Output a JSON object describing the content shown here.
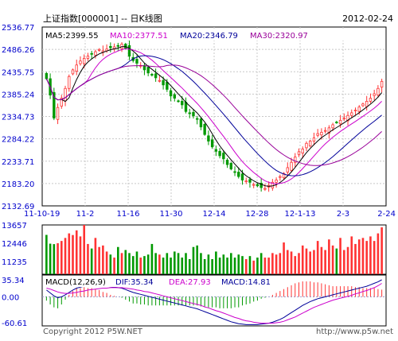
{
  "header": {
    "title": "上证指数[000001] -- 日K线图",
    "date": "2012-02-24"
  },
  "footer": {
    "copyright": "Copyright 2012 P5W.NET",
    "url": "http://www.p5w.net"
  },
  "colors": {
    "up": "#ff3333",
    "down": "#009900",
    "ma5": "#000000",
    "ma10": "#cc00cc",
    "ma20": "#000099",
    "ma30": "#990099",
    "dif": "#000099",
    "dea": "#cc00cc",
    "macd_label": "#000099",
    "axis_text": "#0000cc"
  },
  "chart_data": [
    {
      "type": "candlestick",
      "name": "price",
      "yticks": [
        "2536.77",
        "2486.26",
        "2435.75",
        "2385.24",
        "2334.73",
        "2284.22",
        "2233.71",
        "2183.20",
        "2132.69"
      ],
      "ylim": [
        2132.69,
        2536.77
      ],
      "x_ticks": [
        "11-10-19",
        "11-2",
        "11-16",
        "11-30",
        "12-14",
        "12-28",
        "12-1-13",
        "2-3",
        "2-24"
      ],
      "legend": [
        {
          "label": "MA5:2399.55",
          "series": "ma5"
        },
        {
          "label": "MA10:2377.51",
          "series": "ma10"
        },
        {
          "label": "MA20:2346.79",
          "series": "ma20"
        },
        {
          "label": "MA30:2320.97",
          "series": "ma30"
        }
      ],
      "close": [
        2420,
        2383,
        2331,
        2355,
        2376,
        2398,
        2425,
        2440,
        2451,
        2460,
        2466,
        2471,
        2476,
        2481,
        2486,
        2483,
        2487,
        2490,
        2492,
        2494,
        2498,
        2489,
        2471,
        2461,
        2455,
        2450,
        2440,
        2433,
        2428,
        2422,
        2416,
        2406,
        2396,
        2381,
        2376,
        2369,
        2361,
        2346,
        2341,
        2336,
        2329,
        2311,
        2294,
        2279,
        2266,
        2256,
        2246,
        2239,
        2226,
        2216,
        2209,
        2199,
        2191,
        2189,
        2186,
        2181,
        2178,
        2174,
        2172,
        2179,
        2186,
        2191,
        2199,
        2206,
        2219,
        2231,
        2243,
        2255,
        2261,
        2274,
        2279,
        2286,
        2296,
        2299,
        2303,
        2309,
        2316,
        2321,
        2326,
        2331,
        2337,
        2343,
        2349,
        2356,
        2363,
        2369,
        2376,
        2386,
        2398,
        2414
      ]
    },
    {
      "type": "bar",
      "name": "volume",
      "yticks": [
        "13657",
        "12446",
        "11235"
      ],
      "values": [
        13000,
        12420,
        12390,
        12450,
        12600,
        12800,
        13100,
        12990,
        13300,
        12900,
        13657,
        12400,
        12100,
        12800,
        12200,
        12300,
        11900,
        11700,
        11500,
        12200,
        11800,
        12000,
        11800,
        11600,
        11900,
        11500,
        11600,
        11700,
        12400,
        11800,
        11700,
        11500,
        11800,
        11500,
        11900,
        11800,
        11500,
        11800,
        11400,
        12200,
        12300,
        11800,
        11400,
        11700,
        11400,
        11900,
        11500,
        11700,
        11500,
        11800,
        11500,
        11700,
        11600,
        11400,
        11600,
        11300,
        11500,
        11800,
        11500,
        11500,
        11800,
        11700,
        11800,
        12500,
        12000,
        11900,
        11600,
        11800,
        12300,
        12100,
        11900,
        12000,
        12600,
        12200,
        12000,
        12700,
        12300,
        12100,
        12800,
        12000,
        12200,
        12900,
        12400,
        12700,
        12800,
        12600,
        12900,
        12600,
        13100,
        13500
      ]
    },
    {
      "type": "line",
      "name": "macd",
      "yticks": [
        "35.34",
        "0.00",
        "-60.61"
      ],
      "legend": {
        "title": "MACD(12,26,9)",
        "dif": "DIF:35.34",
        "dea": "DEA:27.93",
        "macd": "MACD:14.81"
      },
      "dif": [
        14.0,
        8.0,
        2.0,
        -2.0,
        0.0,
        4.0,
        9.0,
        14.0,
        18.0,
        20.0,
        22.0,
        23.0,
        24.0,
        24.0,
        24.0,
        23.0,
        22.0,
        21.0,
        20.0,
        19.0,
        18.0,
        15.0,
        12.0,
        9.0,
        7.0,
        5.0,
        3.0,
        1.0,
        -1.0,
        -3.0,
        -5.0,
        -7.0,
        -9.0,
        -11.0,
        -13.0,
        -15.0,
        -17.0,
        -19.0,
        -21.0,
        -23.0,
        -25.0,
        -28.0,
        -31.0,
        -34.0,
        -37.0,
        -40.0,
        -43.0,
        -46.0,
        -49.0,
        -52.0,
        -54.0,
        -56.0,
        -57.0,
        -58.0,
        -58.0,
        -58.0,
        -58.0,
        -57.0,
        -56.0,
        -55.0,
        -53.0,
        -50.0,
        -47.0,
        -43.0,
        -38.0,
        -33.0,
        -28.0,
        -23.0,
        -18.0,
        -14.0,
        -10.0,
        -7.0,
        -4.0,
        -2.0,
        0.0,
        2.0,
        4.0,
        6.0,
        8.0,
        10.0,
        12.0,
        14.0,
        16.0,
        18.0,
        20.0,
        22.0,
        25.0,
        28.0,
        31.0,
        35.34
      ],
      "dea": [
        18.0,
        16.0,
        13.0,
        10.0,
        8.0,
        7.0,
        7.0,
        8.0,
        9.0,
        11.0,
        12.0,
        14.0,
        15.0,
        16.0,
        17.0,
        18.0,
        18.0,
        19.0,
        19.0,
        19.0,
        19.0,
        18.0,
        17.0,
        16.0,
        14.0,
        13.0,
        11.0,
        10.0,
        8.0,
        6.0,
        4.0,
        2.0,
        0.0,
        -2.0,
        -4.0,
        -6.0,
        -8.0,
        -10.0,
        -12.0,
        -14.0,
        -16.0,
        -18.0,
        -21.0,
        -23.0,
        -26.0,
        -29.0,
        -31.0,
        -34.0,
        -37.0,
        -40.0,
        -43.0,
        -45.0,
        -48.0,
        -50.0,
        -51.0,
        -53.0,
        -54.0,
        -55.0,
        -55.0,
        -55.0,
        -55.0,
        -54.0,
        -53.0,
        -51.0,
        -48.0,
        -45.0,
        -42.0,
        -38.0,
        -34.0,
        -30.0,
        -26.0,
        -22.0,
        -19.0,
        -16.0,
        -13.0,
        -10.0,
        -7.0,
        -5.0,
        -3.0,
        -1.0,
        1.0,
        3.0,
        6.0,
        8.0,
        11.0,
        13.0,
        16.0,
        19.0,
        23.0,
        27.93
      ],
      "macd": [
        -8.0,
        -16.0,
        -22.0,
        -24.0,
        -16.0,
        -6.0,
        4.0,
        12.0,
        18.0,
        18.0,
        20.0,
        18.0,
        18.0,
        16.0,
        14.0,
        10.0,
        8.0,
        4.0,
        2.0,
        0.0,
        -2.0,
        -6.0,
        -10.0,
        -14.0,
        -14.0,
        -16.0,
        -16.0,
        -18.0,
        -18.0,
        -18.0,
        -18.0,
        -18.0,
        -18.0,
        -18.0,
        -18.0,
        -18.0,
        -18.0,
        -18.0,
        -18.0,
        -18.0,
        -18.0,
        -20.0,
        -20.0,
        -22.0,
        -22.0,
        -22.0,
        -24.0,
        -24.0,
        -24.0,
        -24.0,
        -22.0,
        -22.0,
        -18.0,
        -16.0,
        -14.0,
        -10.0,
        -8.0,
        -4.0,
        -2.0,
        0.0,
        4.0,
        8.0,
        12.0,
        16.0,
        20.0,
        24.0,
        28.0,
        30.0,
        32.0,
        32.0,
        32.0,
        30.0,
        30.0,
        28.0,
        26.0,
        24.0,
        22.0,
        22.0,
        22.0,
        22.0,
        22.0,
        22.0,
        20.0,
        20.0,
        18.0,
        18.0,
        18.0,
        18.0,
        16.0,
        14.81
      ]
    }
  ]
}
